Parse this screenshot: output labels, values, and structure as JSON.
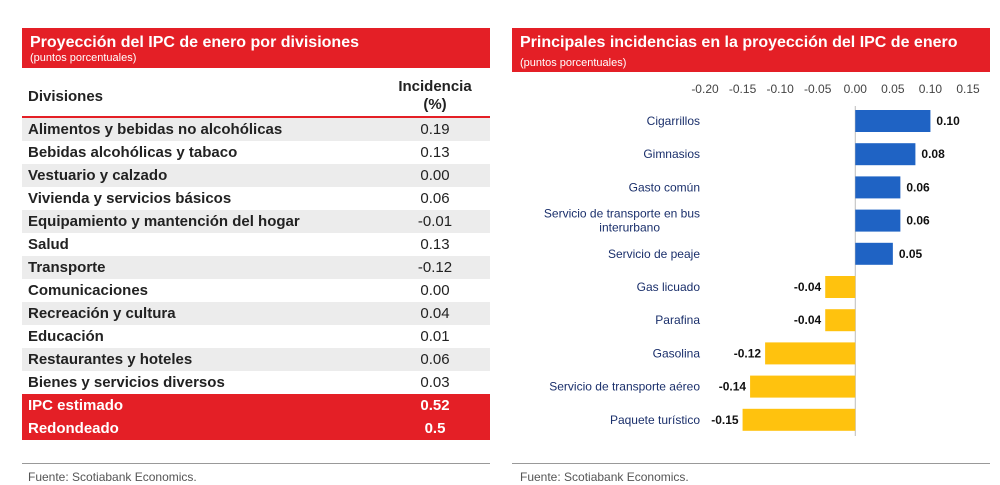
{
  "left": {
    "title": "Proyección del IPC de enero por divisiones",
    "subtitle": "(puntos porcentuales)",
    "col_division": "Divisiones",
    "col_incidencia": "Incidencia",
    "col_incidencia_unit": "(%)",
    "rows": [
      {
        "division": "Alimentos y bebidas no alcohólicas",
        "value": "0.19"
      },
      {
        "division": "Bebidas alcohólicas y tabaco",
        "value": "0.13"
      },
      {
        "division": "Vestuario y calzado",
        "value": "0.00"
      },
      {
        "division": "Vivienda y servicios básicos",
        "value": "0.06"
      },
      {
        "division": "Equipamiento y mantención del hogar",
        "value": "-0.01"
      },
      {
        "division": "Salud",
        "value": "0.13"
      },
      {
        "division": "Transporte",
        "value": "-0.12"
      },
      {
        "division": "Comunicaciones",
        "value": "0.00"
      },
      {
        "division": "Recreación y cultura",
        "value": "0.04"
      },
      {
        "division": "Educación",
        "value": "0.01"
      },
      {
        "division": "Restaurantes y hoteles",
        "value": "0.06"
      },
      {
        "division": "Bienes y servicios diversos",
        "value": "0.03"
      }
    ],
    "totals": [
      {
        "division": "IPC estimado",
        "value": "0.52"
      },
      {
        "division": "Redondeado",
        "value": "0.5"
      }
    ],
    "source": "Fuente: Scotiabank Economics."
  },
  "right": {
    "title_bold": "Principales incidencias en la proyección del IPC de enero",
    "subtitle": "(puntos porcentuales)",
    "source": "Fuente: Scotiabank Economics."
  },
  "colors": {
    "red": "#e41f26",
    "blue": "#1f63c4",
    "yellow": "#ffc20e"
  },
  "chart_data": {
    "type": "bar",
    "orientation": "horizontal",
    "title": "Principales incidencias en la proyección del IPC de enero (puntos porcentuales)",
    "categories": [
      "Cigarrillos",
      "Gimnasios",
      "Gasto común",
      "Servicio de transporte en bus interurbano",
      "Servicio de peaje",
      "Gas licuado",
      "Parafina",
      "Gasolina",
      "Servicio de transporte aéreo",
      "Paquete turístico"
    ],
    "values": [
      0.1,
      0.08,
      0.06,
      0.06,
      0.05,
      -0.04,
      -0.04,
      -0.12,
      -0.14,
      -0.15
    ],
    "value_labels": [
      "0.10",
      "0.08",
      "0.06",
      "0.06",
      "0.05",
      "-0.04",
      "-0.04",
      "-0.12",
      "-0.14",
      "-0.15"
    ],
    "xlim": [
      -0.2,
      0.15
    ],
    "xticks": [
      "-0.20",
      "-0.15",
      "-0.10",
      "-0.05",
      "0.00",
      "0.05",
      "0.10",
      "0.15"
    ],
    "axis_position": "top",
    "grid": false,
    "positive_color": "#1f63c4",
    "negative_color": "#ffc20e"
  }
}
